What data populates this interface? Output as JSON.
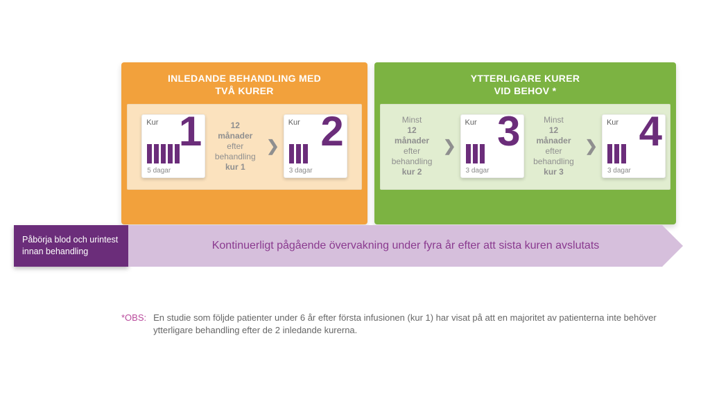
{
  "colors": {
    "orange_border": "#f2a13c",
    "orange_body": "#fbe2be",
    "green_border": "#7cb342",
    "green_body": "#e1edd0",
    "purple_dark": "#6b2d7a",
    "purple_light": "#d6bfdc",
    "purple_text": "#8a3a8f",
    "grey_text": "#8f8f8f",
    "footnote_tag": "#b94a9c"
  },
  "panel_orange": {
    "title_line1": "INLEDANDE BEHANDLING MED",
    "title_line2": "TVÅ KURER",
    "kur1": {
      "label": "Kur",
      "number": "1",
      "days": "5 dagar",
      "bars": 5
    },
    "interval12": {
      "l1": "12",
      "l2": "månader",
      "l3": "efter",
      "l4": "behandling",
      "l5": "kur 1"
    },
    "kur2": {
      "label": "Kur",
      "number": "2",
      "days": "3 dagar",
      "bars": 3
    }
  },
  "panel_green": {
    "title_line1": "YTTERLIGARE KURER",
    "title_line2": "VID BEHOV *",
    "interval23": {
      "l0": "Minst",
      "l1": "12",
      "l2": "månader",
      "l3": "efter",
      "l4": "behandling",
      "l5": "kur 2"
    },
    "kur3": {
      "label": "Kur",
      "number": "3",
      "days": "3 dagar",
      "bars": 3
    },
    "interval34": {
      "l0": "Minst",
      "l1": "12",
      "l2": "månader",
      "l3": "efter",
      "l4": "behandling",
      "l5": "kur 3"
    },
    "kur4": {
      "label": "Kur",
      "number": "4",
      "days": "3 dagar",
      "bars": 3
    }
  },
  "pretest": "Påbörja blod och urintest innan behandling",
  "arrow_text": "Kontinuerligt pågående övervakning under fyra år efter att sista kuren avslutats",
  "footnote": {
    "tag": "*OBS:",
    "text": "En studie som följde patienter under 6 år efter första infusionen (kur 1) har visat på att en majoritet av patienterna inte behöver ytterligare behandling efter de 2 inledande kurerna."
  }
}
